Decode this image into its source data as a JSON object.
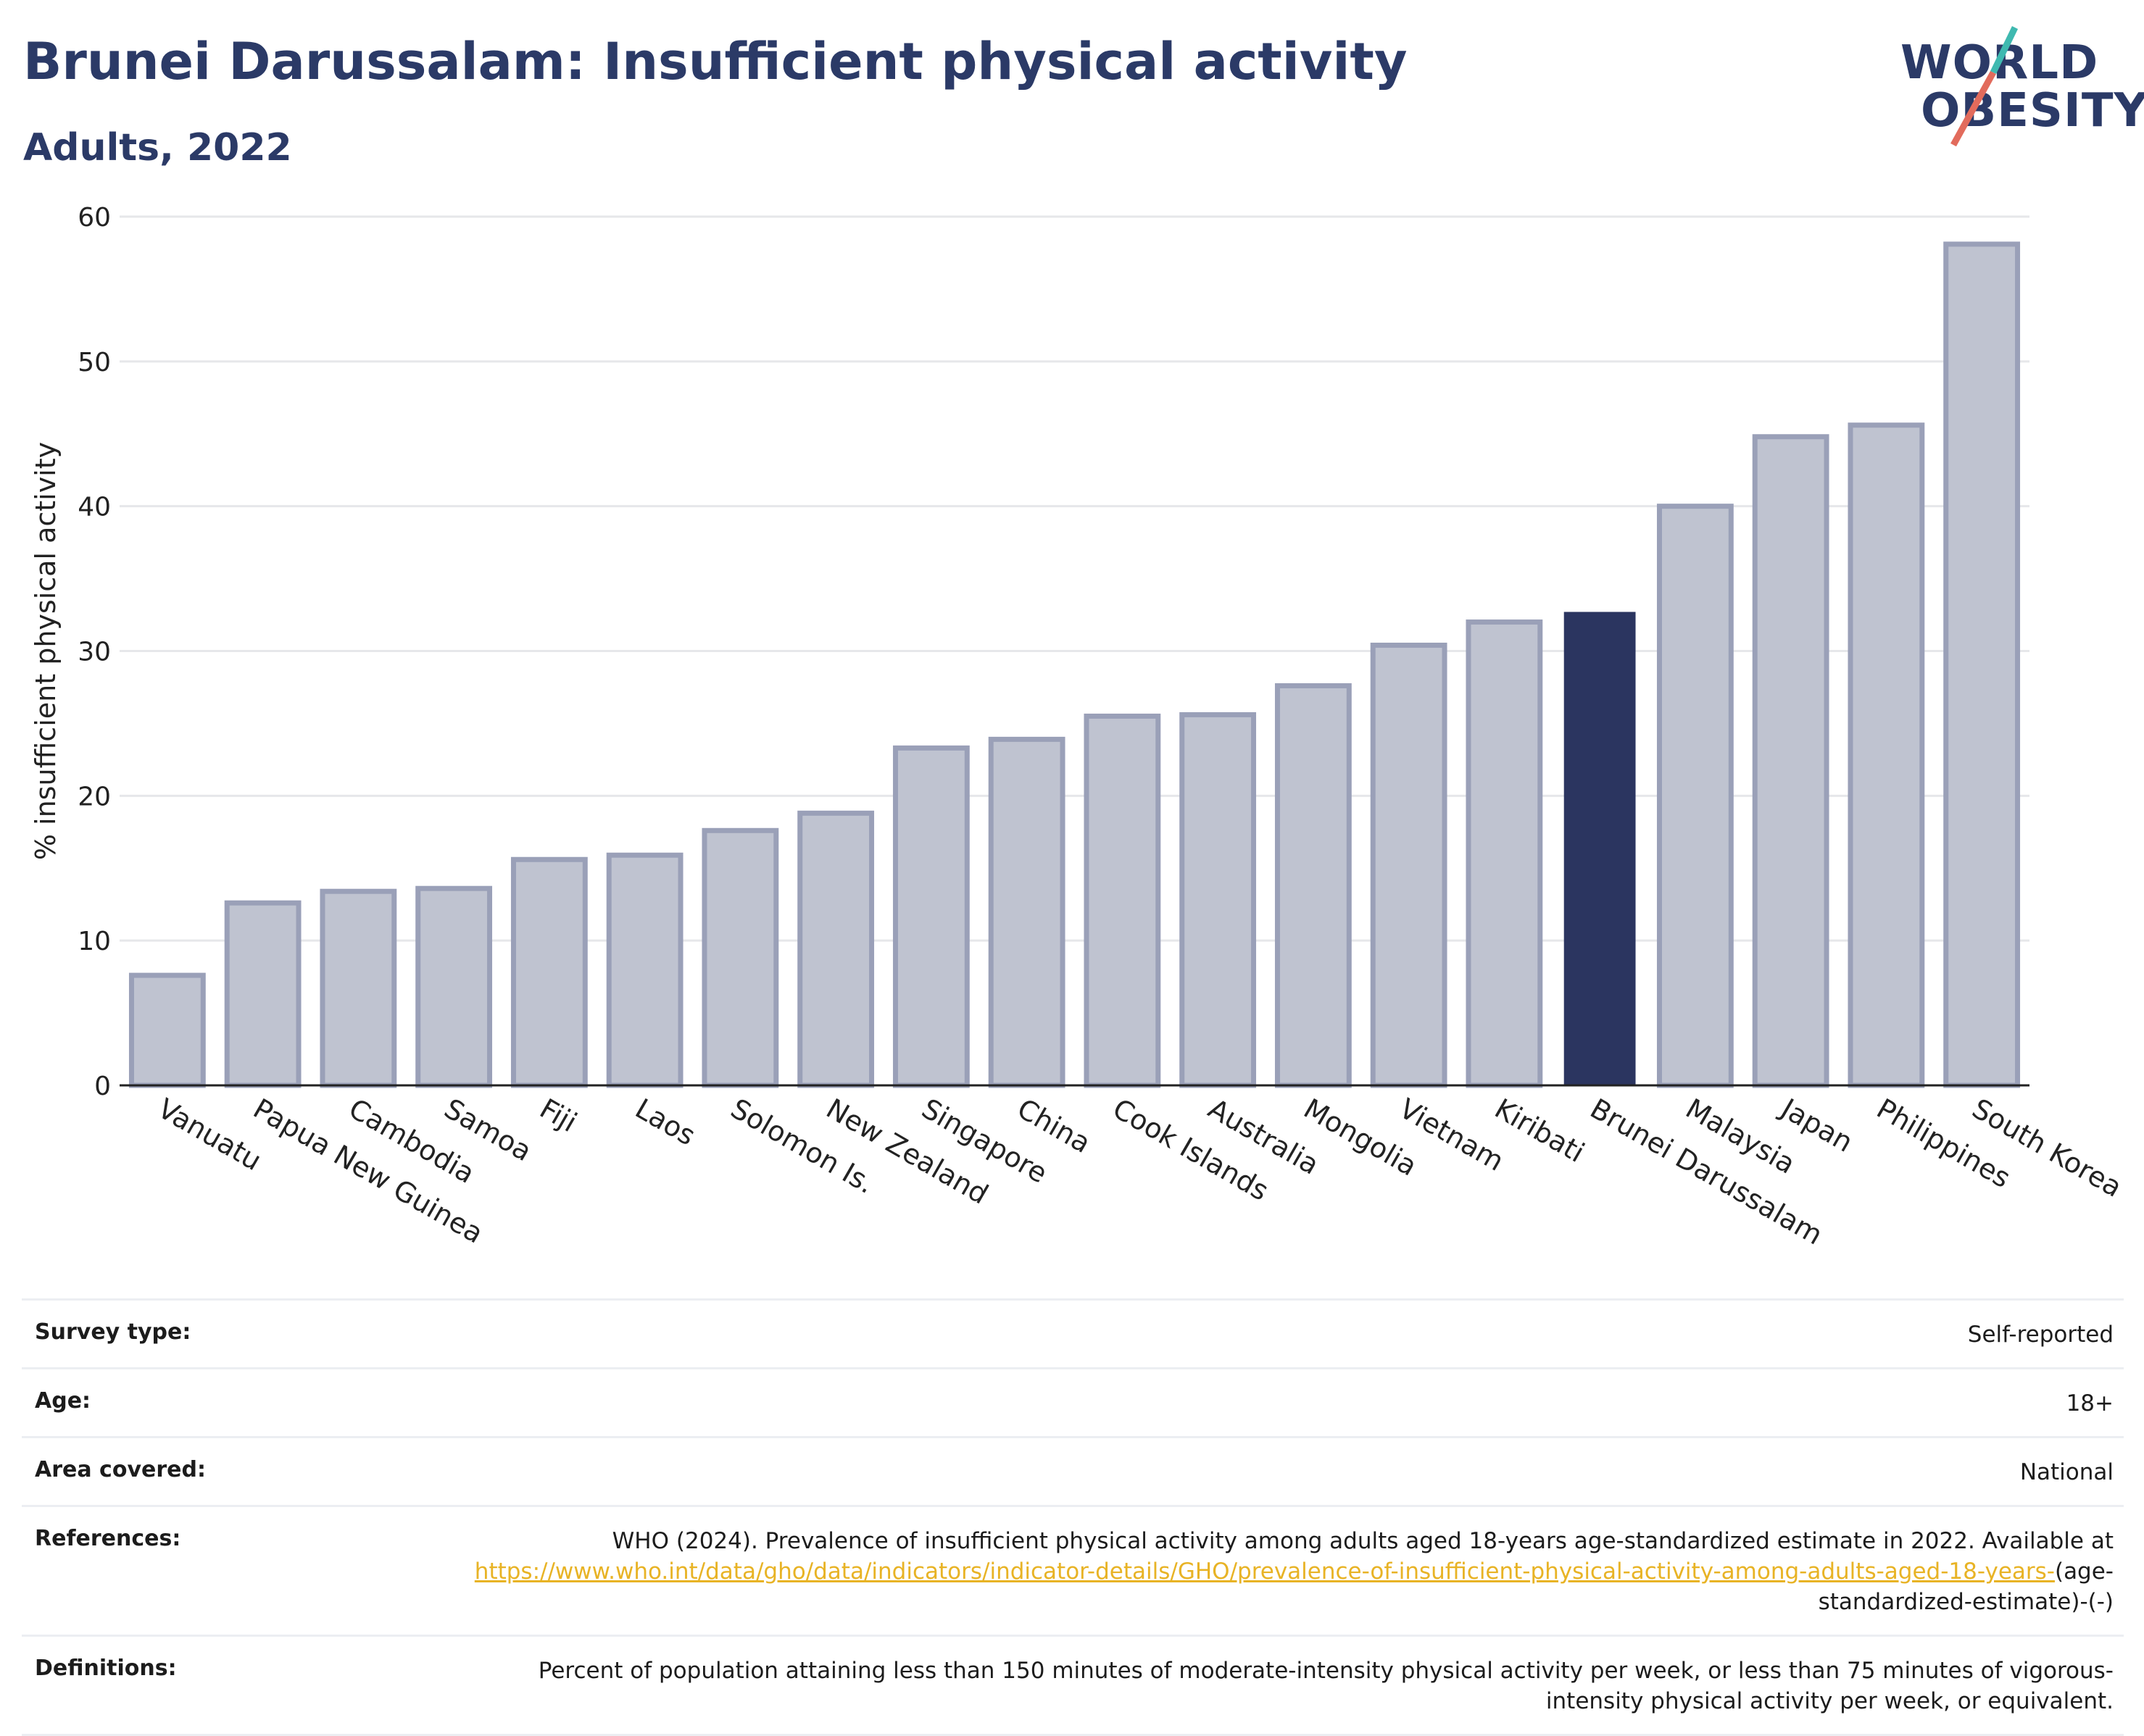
{
  "header": {
    "title": "Brunei Darussalam: Insufficient physical activity",
    "subtitle": "Adults, 2022"
  },
  "logo": {
    "line1": "WORLD",
    "line2": "OBESITY",
    "icon": "world-obesity-logo-slash"
  },
  "colors": {
    "bar": "#bfc3d0",
    "bar_stroke": "#9aa0b8",
    "highlight": "#2b3560",
    "grid": "#e6e7ea",
    "axis": "#222222",
    "link": "#e8b325"
  },
  "chart_data": {
    "type": "bar",
    "title": "Brunei Darussalam: Insufficient physical activity",
    "subtitle": "Adults, 2022",
    "xlabel": "",
    "ylabel": "% insufficient physical activity",
    "ylim": [
      0,
      60
    ],
    "yticks": [
      0,
      10,
      20,
      30,
      40,
      50,
      60
    ],
    "grid": true,
    "highlight": "Brunei Darussalam",
    "categories": [
      "Vanuatu",
      "Papua New Guinea",
      "Cambodia",
      "Samoa",
      "Fiji",
      "Laos",
      "Solomon Is.",
      "New Zealand",
      "Singapore",
      "China",
      "Cook Islands",
      "Australia",
      "Mongolia",
      "Vietnam",
      "Kiribati",
      "Brunei Darussalam",
      "Malaysia",
      "Japan",
      "Philippines",
      "South Korea"
    ],
    "values": [
      7.6,
      12.6,
      13.4,
      13.6,
      15.6,
      15.9,
      17.6,
      18.8,
      23.3,
      23.9,
      25.5,
      25.6,
      27.6,
      30.4,
      32.0,
      32.7,
      40.0,
      44.8,
      45.6,
      58.1
    ]
  },
  "info": {
    "rows": [
      {
        "label": "Survey type:",
        "value": "Self-reported"
      },
      {
        "label": "Age:",
        "value": "18+"
      },
      {
        "label": "Area covered:",
        "value": "National"
      },
      {
        "label": "References:",
        "value": "WHO (2024). Prevalence of insufficient physical activity among adults aged 18-years age-standardized estimate in 2022. Available at",
        "link": "https://www.who.int/data/gho/data/indicators/indicator-details/GHO/prevalence-of-insufficient-physical-activity-among-adults-aged-18-years-",
        "suffix": "(age-standardized-estimate)-(-)"
      },
      {
        "label": "Definitions:",
        "value": "Percent of population attaining less than 150 minutes of moderate-intensity physical activity per week, or less than 75 minutes of vigorous-intensity physical activity per week, or equivalent."
      }
    ]
  }
}
